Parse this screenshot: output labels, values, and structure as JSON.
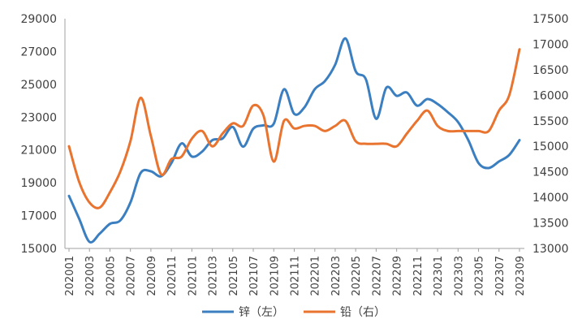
{
  "chart_data": {
    "type": "line",
    "x": [
      "202001",
      "202002",
      "202003",
      "202004",
      "202005",
      "202006",
      "202007",
      "202008",
      "202009",
      "202010",
      "202011",
      "202012",
      "202101",
      "202102",
      "202103",
      "202104",
      "202105",
      "202106",
      "202107",
      "202108",
      "202109",
      "202110",
      "202111",
      "202112",
      "202201",
      "202202",
      "202203",
      "202204",
      "202205",
      "202206",
      "202207",
      "202208",
      "202209",
      "202210",
      "202211",
      "202212",
      "202301",
      "202302",
      "202303",
      "202304",
      "202305",
      "202306",
      "202307",
      "202308",
      "202309"
    ],
    "x_tick_labels": [
      "202001",
      "202003",
      "202005",
      "202007",
      "202009",
      "202011",
      "202101",
      "202103",
      "202105",
      "202107",
      "202109",
      "202111",
      "202201",
      "202203",
      "202205",
      "202207",
      "202209",
      "202211",
      "202301",
      "202303",
      "202305",
      "202307",
      "202309"
    ],
    "y_left_ticks": [
      "15000",
      "17000",
      "19000",
      "21000",
      "23000",
      "25000",
      "27000",
      "29000"
    ],
    "y_right_ticks": [
      "13000",
      "13500",
      "14000",
      "14500",
      "15000",
      "15500",
      "16000",
      "16500",
      "17000",
      "17500"
    ],
    "ylim_left": [
      15000,
      29000
    ],
    "ylim_right": [
      13000,
      17500
    ],
    "grid": false,
    "legend_position": "bottom",
    "series": [
      {
        "name": "锌（左）",
        "axis": "left",
        "color": "#3B7FC0",
        "values": [
          18200,
          16800,
          15400,
          15900,
          16500,
          16700,
          17800,
          19600,
          19700,
          19400,
          20200,
          21400,
          20600,
          20900,
          21600,
          21700,
          22400,
          21200,
          22300,
          22500,
          22600,
          24700,
          23200,
          23600,
          24700,
          25200,
          26200,
          27800,
          25800,
          25300,
          22900,
          24800,
          24300,
          24500,
          23700,
          24100,
          23800,
          23300,
          22700,
          21600,
          20200,
          19900,
          20300,
          20700,
          21600
        ]
      },
      {
        "name": "铅（右）",
        "axis": "right",
        "color": "#E87430",
        "values": [
          15000,
          14300,
          13900,
          13800,
          14100,
          14500,
          15100,
          15950,
          15200,
          14450,
          14750,
          14800,
          15150,
          15300,
          15000,
          15250,
          15450,
          15400,
          15800,
          15600,
          14700,
          15500,
          15350,
          15400,
          15400,
          15300,
          15400,
          15500,
          15100,
          15050,
          15050,
          15050,
          15000,
          15250,
          15500,
          15700,
          15400,
          15300,
          15300,
          15300,
          15300,
          15300,
          15700,
          16000,
          16900
        ]
      }
    ]
  }
}
